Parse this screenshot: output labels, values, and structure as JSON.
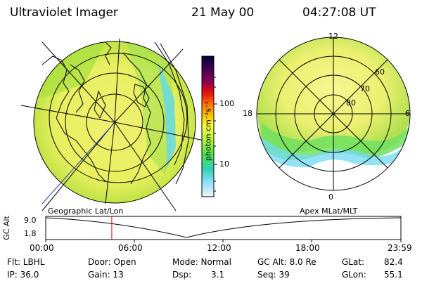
{
  "header": {
    "instrument": "Ultraviolet Imager",
    "date": "21 May 00",
    "time": "04:27:08 UT"
  },
  "colorbar": {
    "label": "photon cm⁻²s⁻¹",
    "ticks": [
      "100",
      "10"
    ],
    "colors": [
      "#000033",
      "#2a0040",
      "#5a0060",
      "#8a0050",
      "#c00020",
      "#ff2000",
      "#ff7000",
      "#ffb000",
      "#ffe040",
      "#f4ff40",
      "#c0ff40",
      "#80f040",
      "#40e060",
      "#30d0c0",
      "#60d8ff",
      "#b0e8ff",
      "#f0f0f0"
    ]
  },
  "left_map": {
    "label": "Geographic Lat/Lon"
  },
  "right_map": {
    "label": "Apex MLat/MLT",
    "mlt_labels": [
      "12",
      "18",
      "6",
      "0"
    ],
    "lat_labels": [
      "60",
      "70",
      "80"
    ]
  },
  "timeline": {
    "axis_label": "GC Alt",
    "y_ticks": [
      "9.0",
      "1.8"
    ],
    "x_ticks": [
      "00:00",
      "06:00",
      "12:00",
      "18:00",
      "23:59"
    ],
    "marker_fraction": 0.186
  },
  "footer": {
    "filter": "Flt: LBHL",
    "ip": "IP: 36.0",
    "door": "Door: Open",
    "gain": "Gain: 13",
    "mode": "Mode: Normal",
    "dsp_label": "Dsp:",
    "dsp_value": "3.1",
    "gc_alt": "GC Alt: 8.0 Re",
    "seq": "Seq: 39",
    "glat_label": "GLat:",
    "glat_value": "82.4",
    "glon_label": "GLon:",
    "glon_value": "55.1"
  }
}
